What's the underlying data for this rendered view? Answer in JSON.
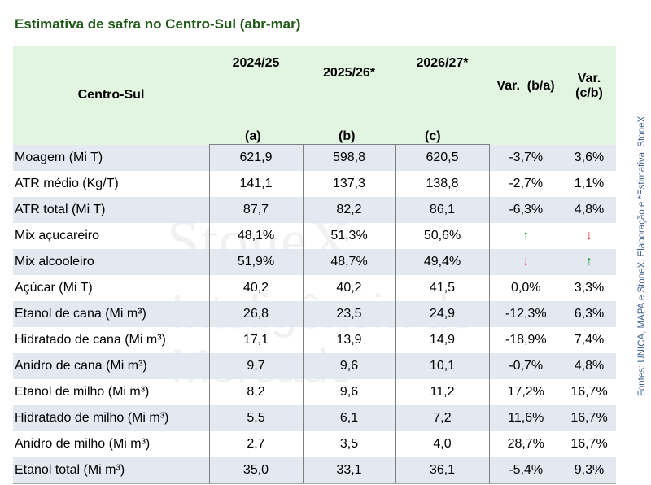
{
  "title": "Estimativa de safra no Centro-Sul (abr-mar)",
  "source_note": "Fontes: UNICA, MAPA e StoneX. Elaboração e *Estimativa: StoneX",
  "watermark": {
    "brand": "StoneX",
    "subtitle": "Inteligência de Mercado"
  },
  "colors": {
    "header_bg": "#e2f5e1",
    "row_shade": "#e3e8f1",
    "title": "#1f5a17",
    "up_arrow": "#1a9a2a",
    "down_arrow": "#e02020"
  },
  "table": {
    "header_label": "Centro-Sul",
    "columns": [
      {
        "year": "2024/25",
        "sub": "(a)"
      },
      {
        "year": "2025/26*",
        "sub": "(b)"
      },
      {
        "year": "2026/27*",
        "sub": "(c)"
      }
    ],
    "var_ba": "Var.  (b/a)",
    "var_cb_line1": "Var.",
    "var_cb_line2": "(c/b)",
    "rows": [
      {
        "label": "Moagem (Mi T)",
        "a": "621,9",
        "b": "598,8",
        "c": "620,5",
        "var_ba": "-3,7%",
        "var_cb": "3,6%"
      },
      {
        "label": "ATR médio (Kg/T)",
        "a": "141,1",
        "b": "137,3",
        "c": "138,8",
        "var_ba": "-2,7%",
        "var_cb": "1,1%"
      },
      {
        "label": "ATR total (Mi T)",
        "a": "87,7",
        "b": "82,2",
        "c": "86,1",
        "var_ba": "-6,3%",
        "var_cb": "4,8%"
      },
      {
        "label": "Mix açucareiro",
        "a": "48,1%",
        "b": "51,3%",
        "c": "50,6%",
        "var_ba": "↑",
        "var_cb": "↓"
      },
      {
        "label": "Mix alcooleiro",
        "a": "51,9%",
        "b": "48,7%",
        "c": "49,4%",
        "var_ba": "↓",
        "var_cb": "↑"
      },
      {
        "label": "Açúcar (Mi T)",
        "a": "40,2",
        "b": "40,2",
        "c": "41,5",
        "var_ba": "0,0%",
        "var_cb": "3,3%"
      },
      {
        "label": "Etanol de cana (Mi m³)",
        "a": "26,8",
        "b": "23,5",
        "c": "24,9",
        "var_ba": "-12,3%",
        "var_cb": "6,3%"
      },
      {
        "label": "Hidratado de cana (Mi m³)",
        "a": "17,1",
        "b": "13,9",
        "c": "14,9",
        "var_ba": "-18,9%",
        "var_cb": "7,4%"
      },
      {
        "label": "Anidro de cana (Mi m³)",
        "a": "9,7",
        "b": "9,6",
        "c": "10,1",
        "var_ba": "-0,7%",
        "var_cb": "4,8%"
      },
      {
        "label": "Etanol de milho (Mi m³)",
        "a": "8,2",
        "b": "9,6",
        "c": "11,2",
        "var_ba": "17,2%",
        "var_cb": "16,7%"
      },
      {
        "label": "Hidratado de milho (Mi m³)",
        "a": "5,5",
        "b": "6,1",
        "c": "7,2",
        "var_ba": "11,6%",
        "var_cb": "16,7%"
      },
      {
        "label": "Anidro de milho (Mi m³)",
        "a": "2,7",
        "b": "3,5",
        "c": "4,0",
        "var_ba": "28,7%",
        "var_cb": "16,7%"
      },
      {
        "label": "Etanol total (Mi m³)",
        "a": "35,0",
        "b": "33,1",
        "c": "36,1",
        "var_ba": "-5,4%",
        "var_cb": "9,3%"
      }
    ]
  }
}
